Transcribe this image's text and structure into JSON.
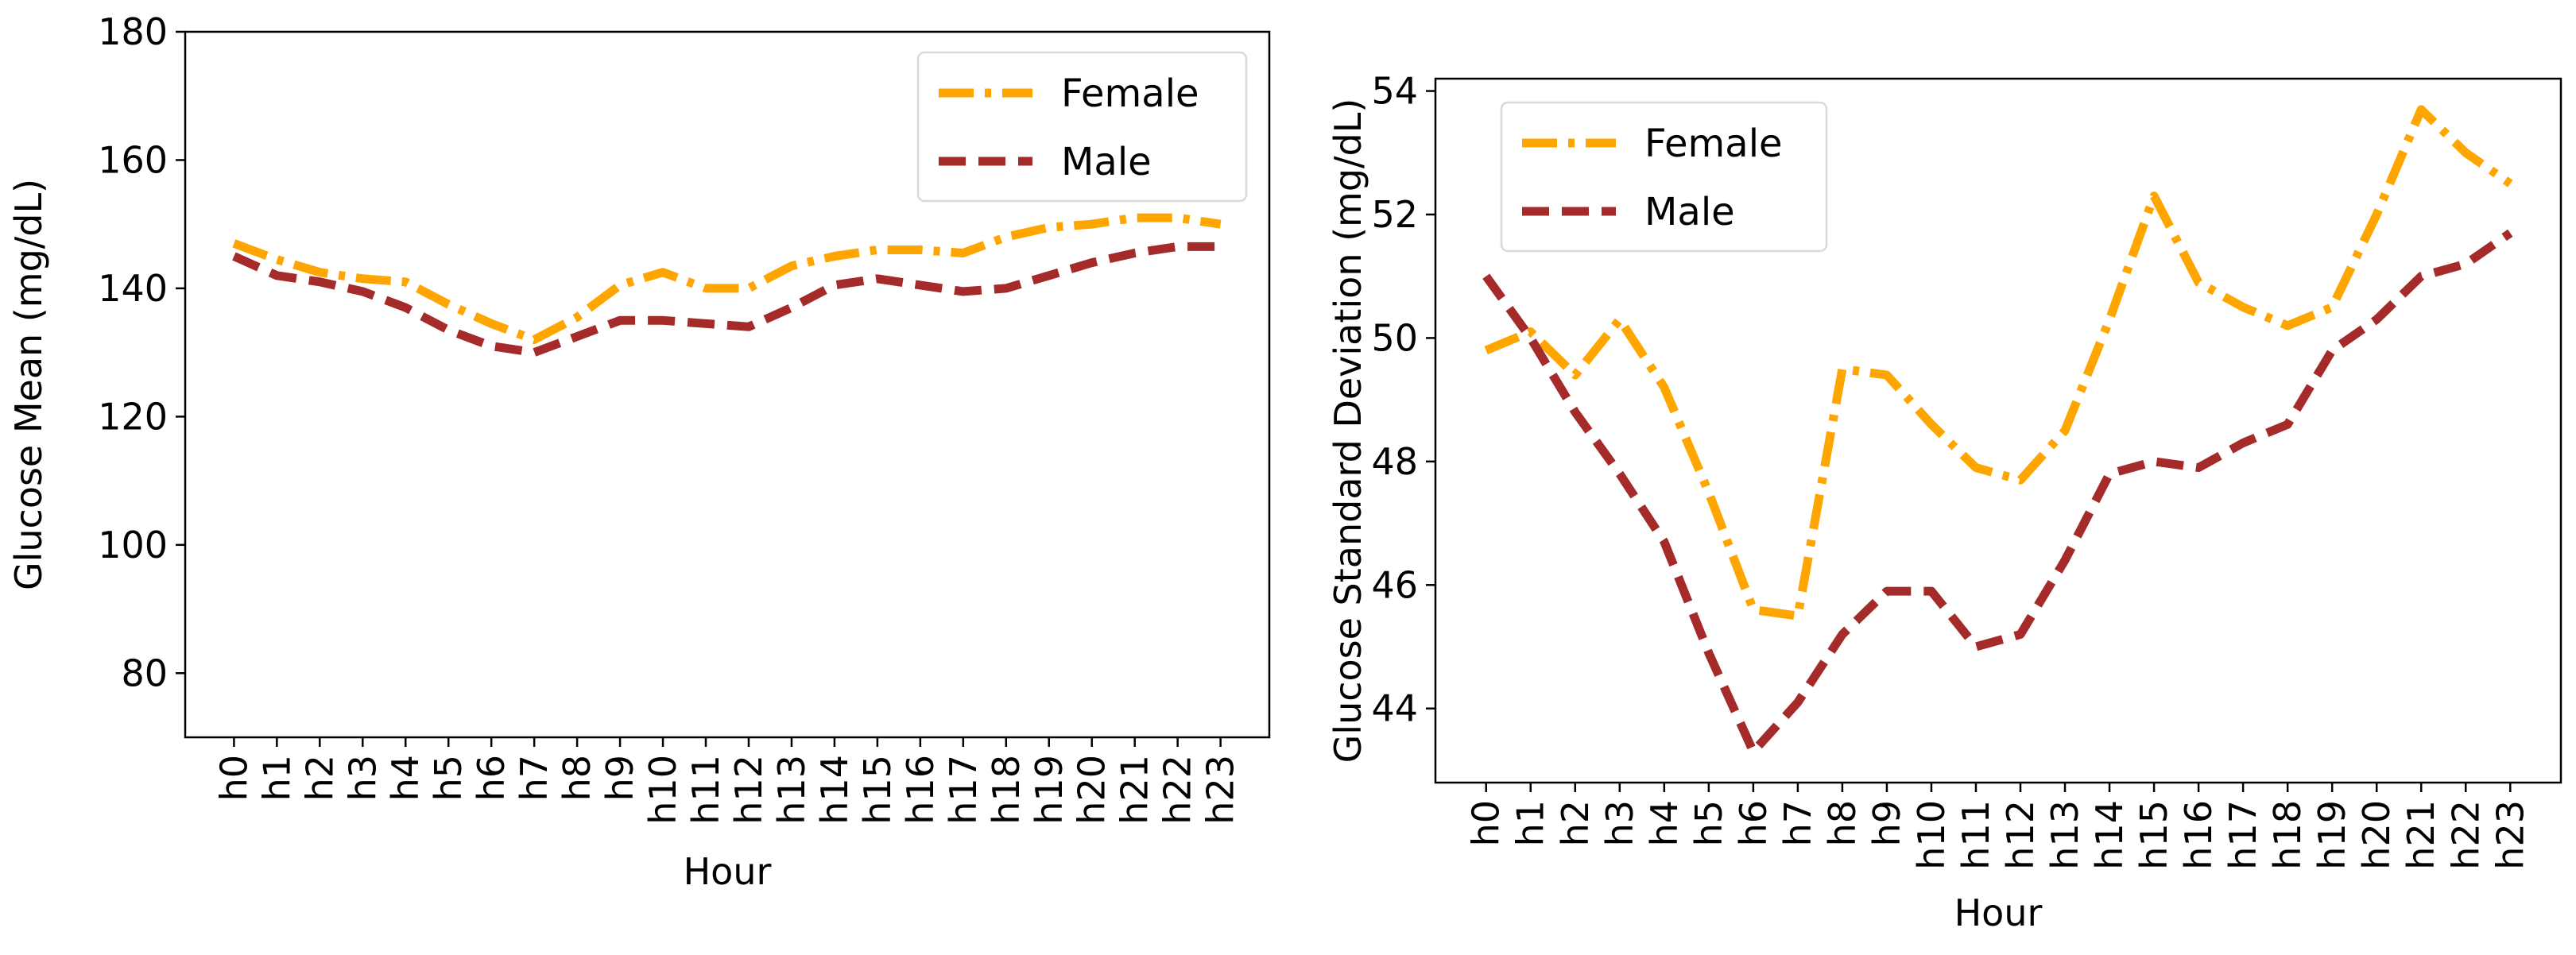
{
  "chart_data": [
    {
      "type": "line",
      "title": "",
      "xlabel": "Hour",
      "ylabel": "Glucose Mean (mg/dL)",
      "x": [
        "h0",
        "h1",
        "h2",
        "h3",
        "h4",
        "h5",
        "h6",
        "h7",
        "h8",
        "h9",
        "h10",
        "h11",
        "h12",
        "h13",
        "h14",
        "h15",
        "h16",
        "h17",
        "h18",
        "h19",
        "h20",
        "h21",
        "h22",
        "h23"
      ],
      "ylim": [
        70,
        180
      ],
      "yticks": [
        80,
        100,
        120,
        140,
        160,
        180
      ],
      "legend_position": "top-right",
      "grid": false,
      "series": [
        {
          "name": "Female",
          "color": "#FFA500",
          "linestyle": "dashdot",
          "values": [
            147,
            144.5,
            142.5,
            141.5,
            141,
            137.5,
            134.5,
            132,
            135.5,
            140.5,
            142.5,
            140,
            140,
            143.5,
            145,
            146,
            146,
            145.5,
            148,
            149.5,
            150,
            151,
            151,
            150
          ]
        },
        {
          "name": "Male",
          "color": "#A52A2A",
          "linestyle": "dashed",
          "values": [
            145,
            142,
            141,
            139.5,
            137,
            133.5,
            131,
            130,
            132.5,
            135,
            135,
            134.5,
            134,
            137,
            140.5,
            141.5,
            140.5,
            139.5,
            140,
            142,
            144,
            145.5,
            146.5,
            146.5
          ]
        }
      ]
    },
    {
      "type": "line",
      "title": "",
      "xlabel": "Hour",
      "ylabel": "Glucose Standard Deviation (mg/dL)",
      "x": [
        "h0",
        "h1",
        "h2",
        "h3",
        "h4",
        "h5",
        "h6",
        "h7",
        "h8",
        "h9",
        "h10",
        "h11",
        "h12",
        "h13",
        "h14",
        "h15",
        "h16",
        "h17",
        "h18",
        "h19",
        "h20",
        "h21",
        "h22",
        "h23"
      ],
      "ylim": [
        42.8,
        54.2
      ],
      "yticks": [
        44,
        46,
        48,
        50,
        52,
        54
      ],
      "legend_position": "top-left",
      "grid": false,
      "series": [
        {
          "name": "Female",
          "color": "#FFA500",
          "linestyle": "dashdot",
          "values": [
            49.8,
            50.1,
            49.4,
            50.3,
            49.2,
            47.5,
            45.6,
            45.5,
            49.5,
            49.4,
            48.6,
            47.9,
            47.7,
            48.5,
            50.3,
            52.3,
            50.9,
            50.5,
            50.2,
            50.5,
            52.0,
            53.7,
            53.0,
            52.5
          ]
        },
        {
          "name": "Male",
          "color": "#A52A2A",
          "linestyle": "dashed",
          "values": [
            51.0,
            50.0,
            48.8,
            47.8,
            46.7,
            44.9,
            43.3,
            44.1,
            45.2,
            45.9,
            45.9,
            45.0,
            45.2,
            46.4,
            47.8,
            48.0,
            47.9,
            48.3,
            48.6,
            49.8,
            50.3,
            51.0,
            51.2,
            51.7
          ]
        }
      ]
    }
  ]
}
